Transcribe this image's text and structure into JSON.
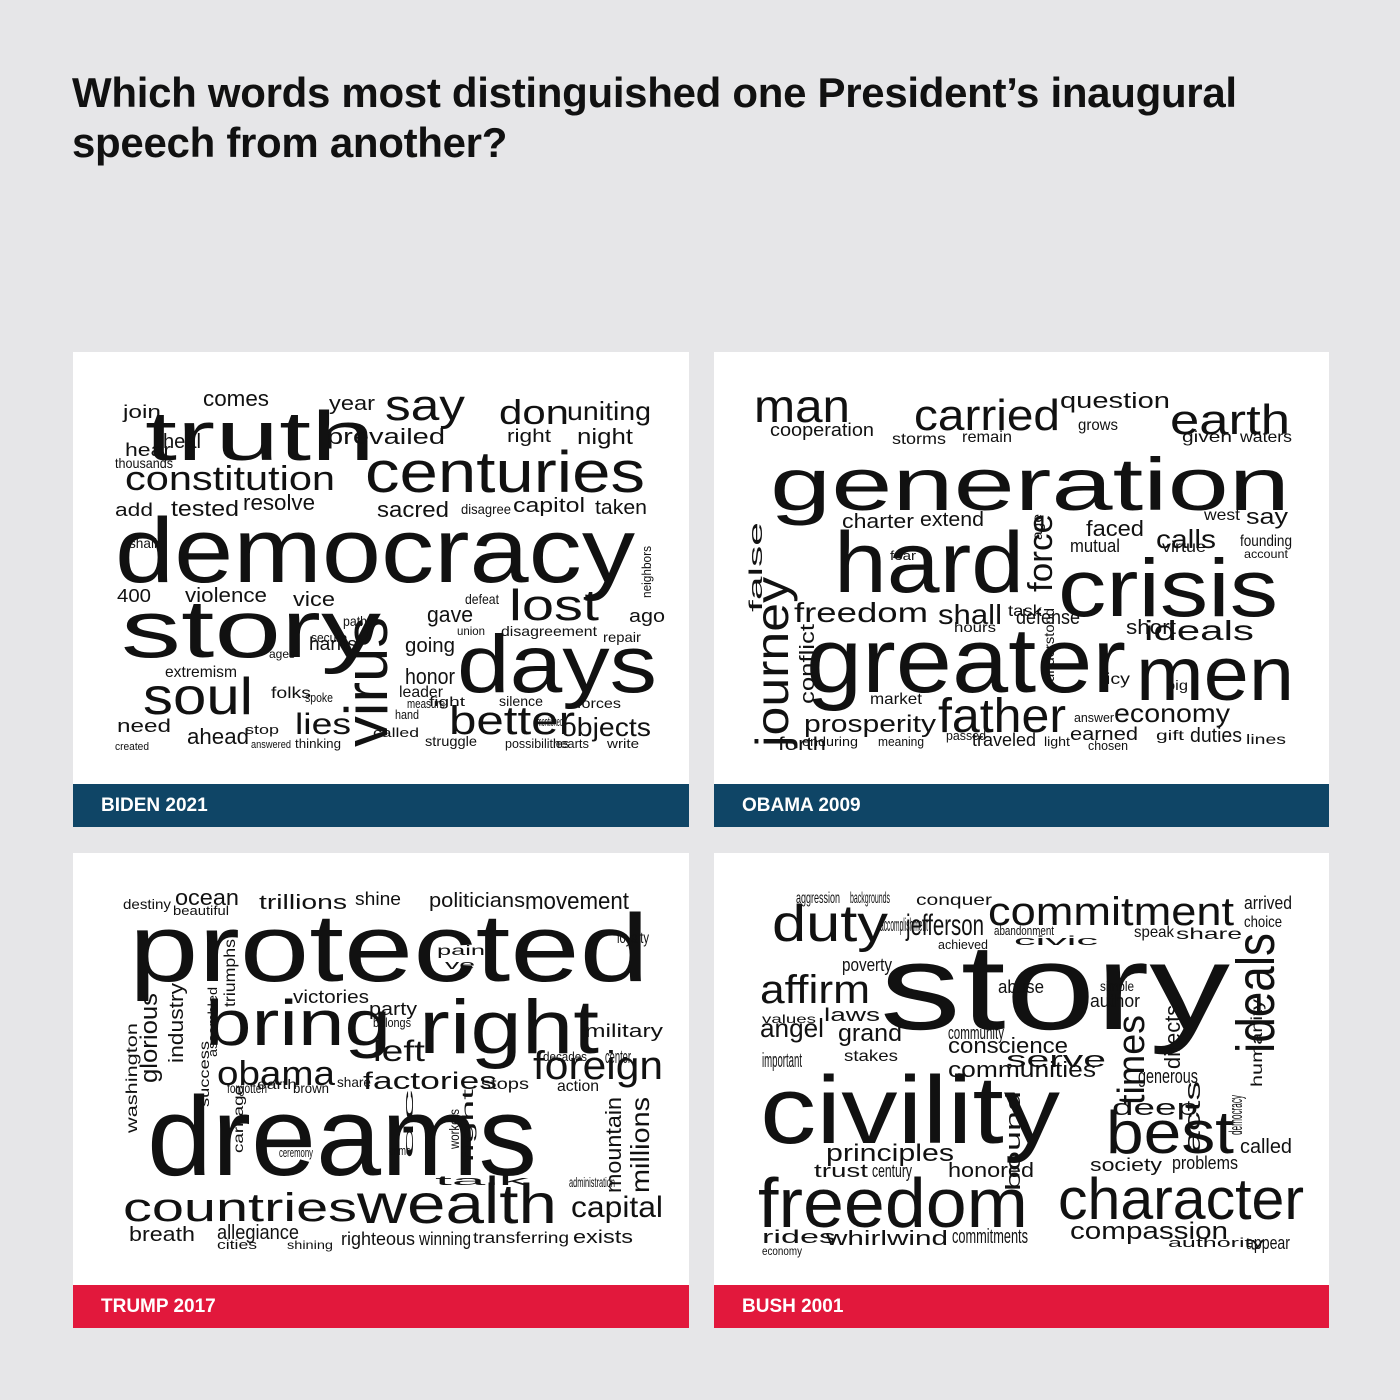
{
  "title": "Which words most distinguished one President’s inaugural speech from another?",
  "colors": {
    "dem_bar": "#0f4566",
    "rep_bar": "#e2183c",
    "background": "#e6e6e8",
    "text": "#111111"
  },
  "panels": [
    {
      "label": "BIDEN 2021",
      "party_color": "#0f4566",
      "words": [
        "democracy",
        "truth",
        "story",
        "centuries",
        "days",
        "virus",
        "say",
        "soul",
        "constitution",
        "lost",
        "better",
        "prevailed",
        "don",
        "uniting",
        "night",
        "sacred",
        "capitol",
        "taken",
        "tested",
        "resolve",
        "violence",
        "vice",
        "lies",
        "ahead",
        "objects",
        "extremism",
        "honor",
        "gave",
        "going",
        "leader",
        "comes",
        "join",
        "hear",
        "add",
        "thousands",
        "need",
        "year",
        "disagree",
        "right",
        "400",
        "harris",
        "folks",
        "forces",
        "struggle",
        "thinking",
        "possibilities",
        "disagreement",
        "repair",
        "ago",
        "silence",
        "hearts",
        "write",
        "heal",
        "shall",
        "defeat",
        "union",
        "neighbors",
        "answered",
        "created",
        "secure",
        "path",
        "measure",
        "mentioned",
        "hand",
        "stop",
        "spoke",
        "ages",
        "fight",
        "called",
        "happen",
        "don"
      ]
    },
    {
      "label": "OBAMA 2009",
      "party_color": "#0f4566",
      "words": [
        "generation",
        "crisis",
        "greater",
        "hard",
        "men",
        "father",
        "journey",
        "carried",
        "earth",
        "man",
        "freedom",
        "prosperity",
        "economy",
        "ideals",
        "force",
        "shall",
        "question",
        "calls",
        "cooperation",
        "faced",
        "forth",
        "say",
        "founding",
        "duties",
        "charter",
        "extend",
        "storms",
        "remain",
        "grows",
        "traveled",
        "waters",
        "given",
        "conflict",
        "false",
        "market",
        "defense",
        "understood",
        "mutual",
        "short",
        "virtue",
        "task",
        "earned",
        "lines",
        "age",
        "icy",
        "west",
        "hours",
        "gift",
        "light",
        "meaning",
        "answer",
        "enduring",
        "account",
        "big",
        "fear",
        "passed",
        "chosen"
      ]
    },
    {
      "label": "TRUMP 2017",
      "party_color": "#e2183c",
      "words": [
        "protected",
        "dreams",
        "right",
        "bring",
        "wealth",
        "foreign",
        "countries",
        "obama",
        "factories",
        "left",
        "capital",
        "millions",
        "mountain",
        "movement",
        "politicians",
        "trillions",
        "ocean",
        "victories",
        "glorious",
        "industry",
        "washington",
        "allegiance",
        "breath",
        "exists",
        "righteous",
        "winning",
        "transferring",
        "military",
        "action",
        "shine",
        "party",
        "stops",
        "destiny",
        "beautiful",
        "triumphs",
        "assembled",
        "success",
        "carnage",
        "forgotten",
        "earth",
        "brown",
        "share",
        "fight",
        "workers",
        "talk",
        "administration",
        "loyalty",
        "pain",
        "belongs",
        "center",
        "ve",
        "crime",
        "dc",
        "ceremony",
        "cities",
        "decades",
        "shining",
        "defended"
      ]
    },
    {
      "label": "BUSH 2001",
      "party_color": "#e2183c",
      "words": [
        "story",
        "civility",
        "freedom",
        "character",
        "duty",
        "commitment",
        "best",
        "ideals",
        "times",
        "affirm",
        "compassion",
        "angel",
        "conscience",
        "communities",
        "principles",
        "grand",
        "honored",
        "whirlwind",
        "commitments",
        "jefferson",
        "deep",
        "generous",
        "directs",
        "acts",
        "called",
        "society",
        "problems",
        "important",
        "laws",
        "poverty",
        "serve",
        "community",
        "stakes",
        "century",
        "trust",
        "appear",
        "rides",
        "economy",
        "author",
        "speak",
        "share",
        "aggression",
        "conquer",
        "backgrounds",
        "arrived",
        "choice",
        "abuse",
        "simple",
        "bound",
        "humanity",
        "democracy",
        "civic",
        "abandonment",
        "authority",
        "accomplishment",
        "values",
        "achieved",
        "building"
      ]
    }
  ]
}
